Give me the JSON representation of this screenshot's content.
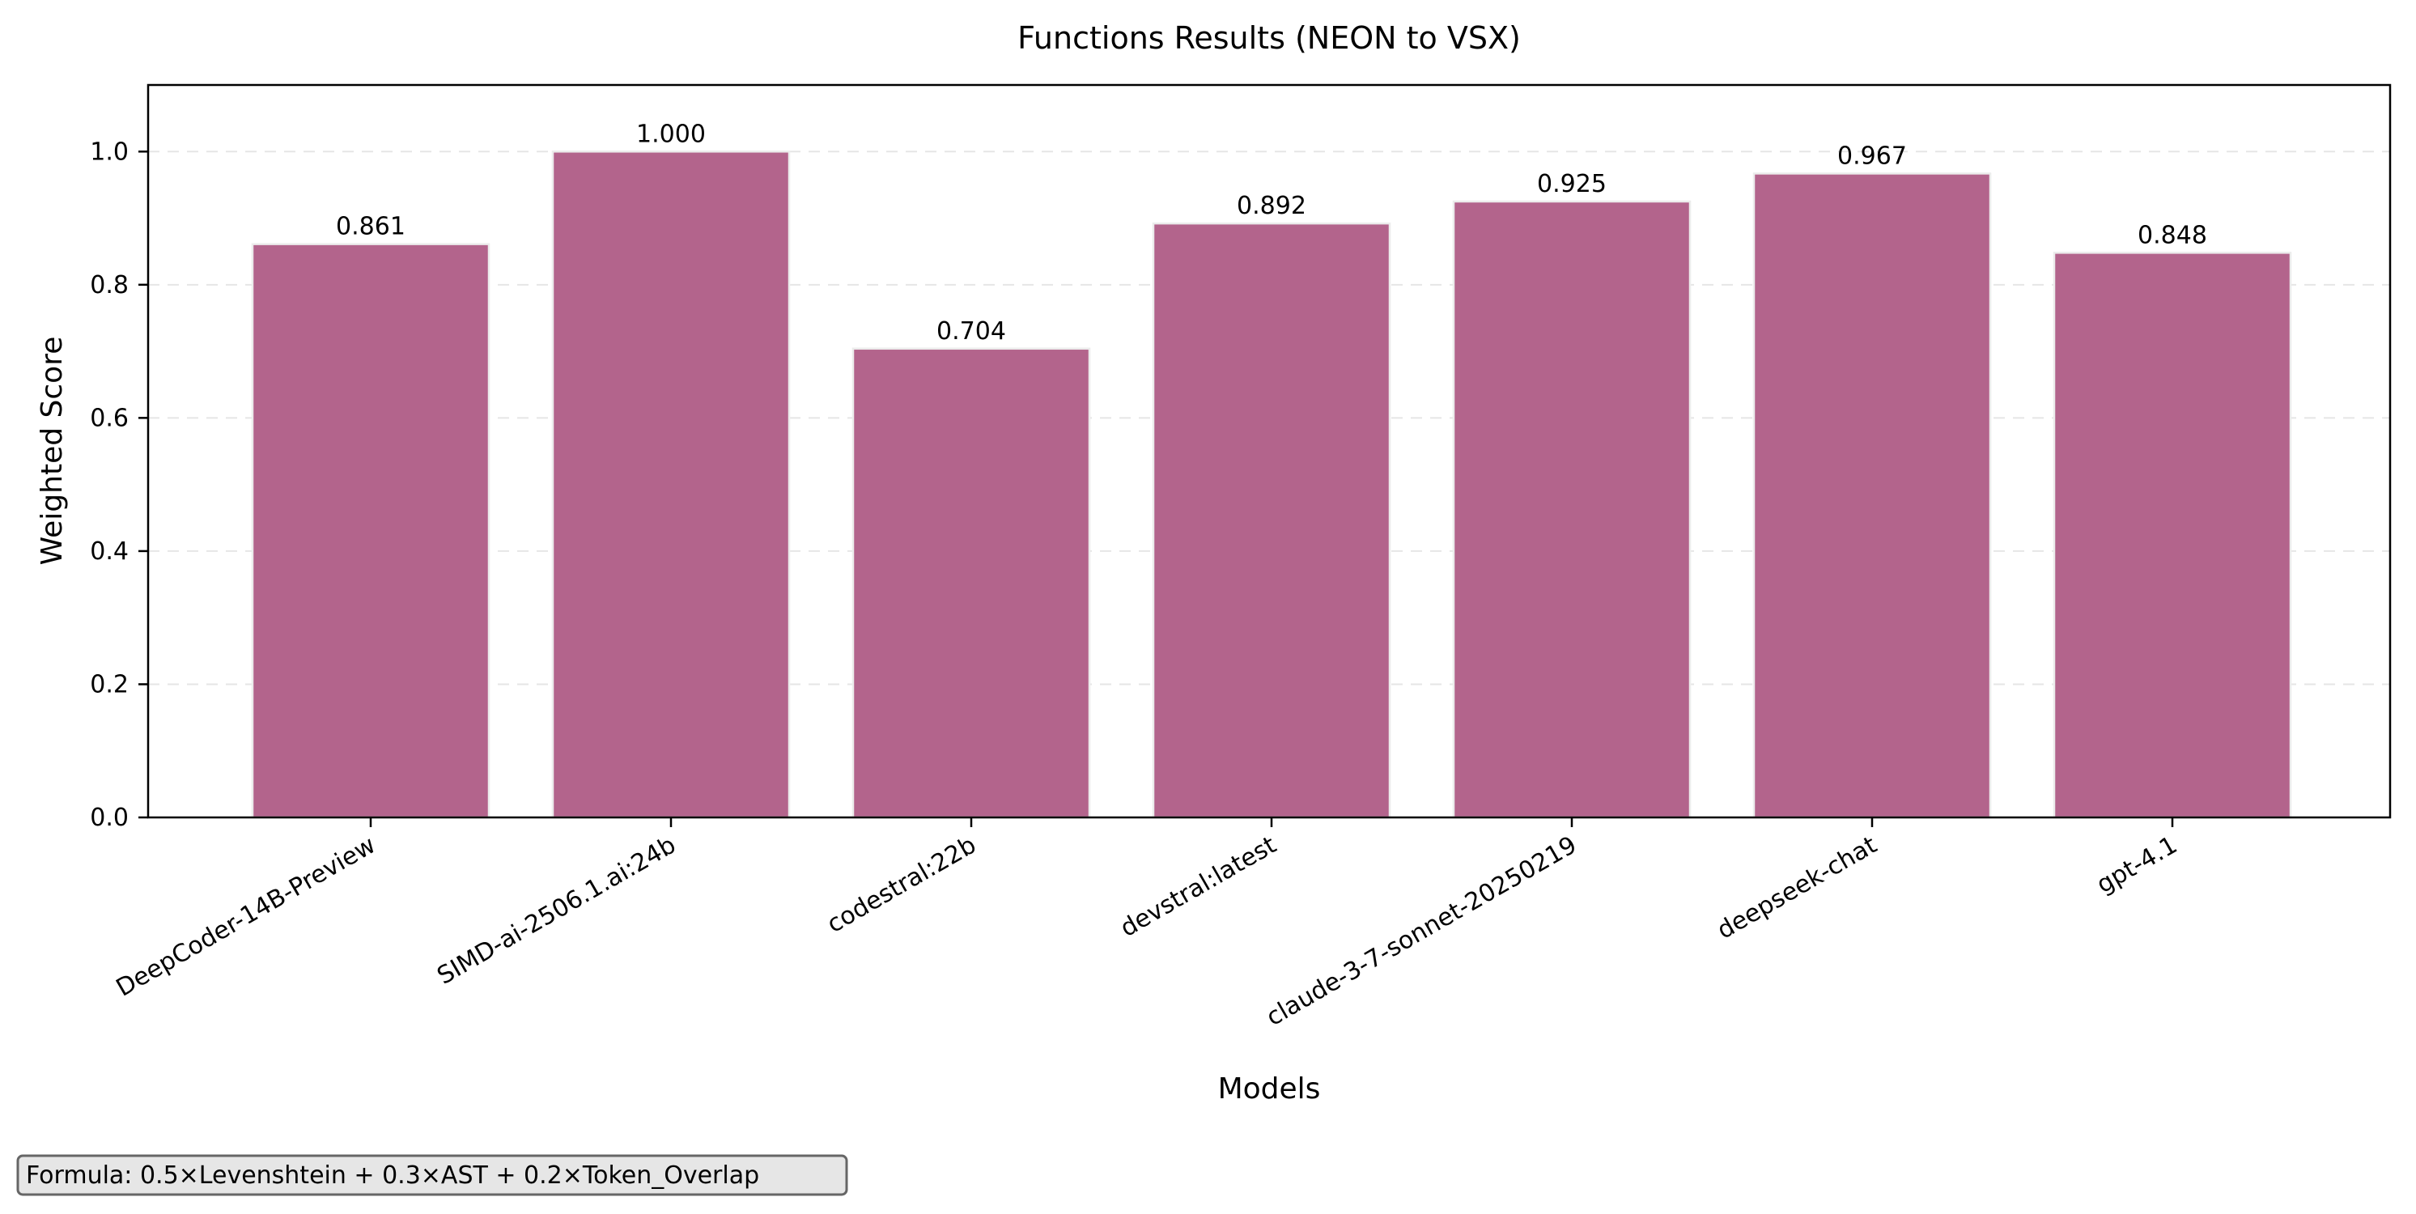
{
  "chart_data": {
    "type": "bar",
    "title": "Functions Results (NEON to VSX)",
    "xlabel": "Models",
    "ylabel": "Weighted Score",
    "categories": [
      "DeepCoder-14B-Preview",
      "SIMD-ai-2506.1.ai:24b",
      "codestral:22b",
      "devstral:latest",
      "claude-3-7-sonnet-20250219",
      "deepseek-chat",
      "gpt-4.1"
    ],
    "values": [
      0.861,
      1.0,
      0.704,
      0.892,
      0.925,
      0.967,
      0.848
    ],
    "value_labels": [
      "0.861",
      "1.000",
      "0.704",
      "0.892",
      "0.925",
      "0.967",
      "0.848"
    ],
    "ylim": [
      0,
      1.1
    ],
    "yticks": [
      0.0,
      0.2,
      0.4,
      0.6,
      0.8,
      1.0
    ],
    "ytick_labels": [
      "0.0",
      "0.2",
      "0.4",
      "0.6",
      "0.8",
      "1.0"
    ],
    "grid": "y-dashed",
    "bar_color": "#b3648c",
    "annotation": "Formula: 0.5×Levenshtein + 0.3×AST + 0.2×Token_Overlap"
  }
}
